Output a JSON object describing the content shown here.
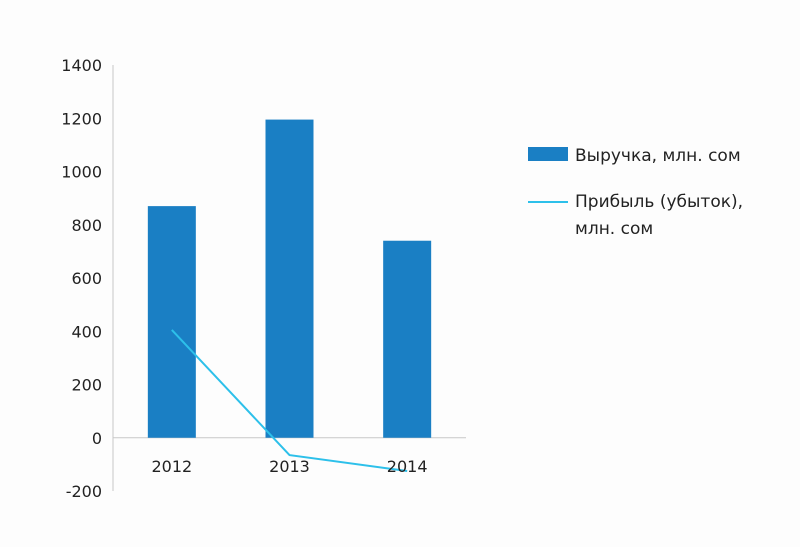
{
  "chart_data": {
    "type": "bar",
    "categories": [
      "2012",
      "2013",
      "2014"
    ],
    "ylim": [
      -200,
      1400
    ],
    "y_ticks": [
      1400,
      1200,
      1000,
      800,
      600,
      400,
      200,
      0,
      -200
    ],
    "series": [
      {
        "name": "Выручка, млн. сом",
        "type": "bar",
        "values": [
          870,
          1195,
          740
        ],
        "color": "#1a7fc4"
      },
      {
        "name": "Прибыль (убыток), млн. сом",
        "name_lines": [
          "Прибыль (убыток),",
          "млн. сом"
        ],
        "type": "line",
        "values": [
          405,
          -65,
          -125
        ],
        "color": "#2dc0ea"
      }
    ],
    "grid": false,
    "legend_position": "right",
    "axis_color": "#c8c8c8"
  }
}
